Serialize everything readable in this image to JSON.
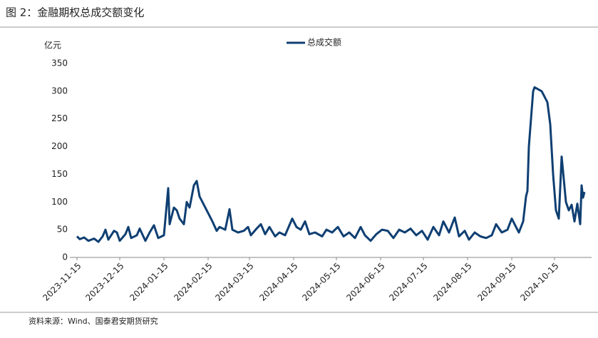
{
  "chart_data": {
    "type": "line",
    "title": "图 2：金融期权总成交额变化",
    "y_label": "亿元",
    "source": "资料来源：Wind、国泰君安期货研究",
    "x": [
      "2023-11-15",
      "2023-11-17",
      "2023-11-20",
      "2023-11-23",
      "2023-11-27",
      "2023-11-30",
      "2023-12-03",
      "2023-12-05",
      "2023-12-07",
      "2023-12-11",
      "2023-12-13",
      "2023-12-15",
      "2023-12-19",
      "2023-12-21",
      "2023-12-23",
      "2023-12-27",
      "2023-12-29",
      "2024-01-02",
      "2024-01-05",
      "2024-01-08",
      "2024-01-11",
      "2024-01-15",
      "2024-01-18",
      "2024-01-19",
      "2024-01-22",
      "2024-01-24",
      "2024-01-26",
      "2024-01-29",
      "2024-01-31",
      "2024-02-02",
      "2024-02-05",
      "2024-02-07",
      "2024-02-09",
      "2024-02-14",
      "2024-02-18",
      "2024-02-21",
      "2024-02-23",
      "2024-02-27",
      "2024-03-01",
      "2024-03-03",
      "2024-03-07",
      "2024-03-11",
      "2024-03-14",
      "2024-03-16",
      "2024-03-20",
      "2024-03-23",
      "2024-03-26",
      "2024-03-29",
      "2024-04-02",
      "2024-04-05",
      "2024-04-09",
      "2024-04-14",
      "2024-04-17",
      "2024-04-20",
      "2024-04-23",
      "2024-04-26",
      "2024-04-30",
      "2024-05-05",
      "2024-05-08",
      "2024-05-12",
      "2024-05-16",
      "2024-05-20",
      "2024-05-24",
      "2024-05-28",
      "2024-06-01",
      "2024-06-04",
      "2024-06-08",
      "2024-06-12",
      "2024-06-16",
      "2024-06-20",
      "2024-06-24",
      "2024-06-28",
      "2024-07-02",
      "2024-07-06",
      "2024-07-10",
      "2024-07-14",
      "2024-07-18",
      "2024-07-22",
      "2024-07-26",
      "2024-07-29",
      "2024-08-02",
      "2024-08-06",
      "2024-08-09",
      "2024-08-13",
      "2024-08-16",
      "2024-08-20",
      "2024-08-24",
      "2024-08-28",
      "2024-09-01",
      "2024-09-04",
      "2024-09-08",
      "2024-09-12",
      "2024-09-15",
      "2024-09-18",
      "2024-09-20",
      "2024-09-23",
      "2024-09-25",
      "2024-09-26",
      "2024-09-27",
      "2024-09-30",
      "2024-10-01",
      "2024-10-06",
      "2024-10-10",
      "2024-10-12",
      "2024-10-14",
      "2024-10-16",
      "2024-10-18",
      "2024-10-20",
      "2024-10-23",
      "2024-10-25",
      "2024-10-27",
      "2024-10-29",
      "2024-10-31",
      "2024-11-02",
      "2024-11-03",
      "2024-11-04",
      "2024-11-05"
    ],
    "series": [
      {
        "name": "总成交额",
        "color": "#0f3f72",
        "values": [
          38,
          33,
          36,
          30,
          34,
          28,
          38,
          50,
          32,
          48,
          45,
          30,
          42,
          55,
          35,
          40,
          52,
          30,
          45,
          58,
          35,
          40,
          125,
          60,
          90,
          85,
          70,
          60,
          100,
          90,
          130,
          138,
          110,
          85,
          65,
          48,
          55,
          50,
          87,
          50,
          45,
          48,
          55,
          40,
          52,
          60,
          42,
          55,
          38,
          45,
          40,
          70,
          55,
          50,
          65,
          42,
          45,
          38,
          50,
          45,
          55,
          38,
          45,
          35,
          55,
          40,
          30,
          42,
          50,
          48,
          35,
          50,
          45,
          52,
          40,
          48,
          32,
          55,
          40,
          65,
          45,
          72,
          38,
          48,
          32,
          45,
          38,
          35,
          40,
          60,
          45,
          50,
          70,
          55,
          45,
          65,
          110,
          120,
          200,
          300,
          307,
          300,
          280,
          240,
          150,
          85,
          70,
          182,
          100,
          85,
          95,
          65,
          97,
          60,
          130,
          108,
          118
        ]
      }
    ],
    "xlim": [
      "2023-11-10",
      "2024-11-10"
    ],
    "xticks": [
      "2023-11-15",
      "2023-12-15",
      "2024-01-15",
      "2024-02-15",
      "2024-03-15",
      "2024-04-15",
      "2024-05-15",
      "2024-06-15",
      "2024-07-15",
      "2024-08-15",
      "2024-09-15",
      "2024-10-15"
    ],
    "ylim": [
      0,
      350
    ],
    "yticks": [
      0,
      50,
      100,
      150,
      200,
      250,
      300,
      350
    ],
    "grid": false,
    "legend": "top"
  }
}
